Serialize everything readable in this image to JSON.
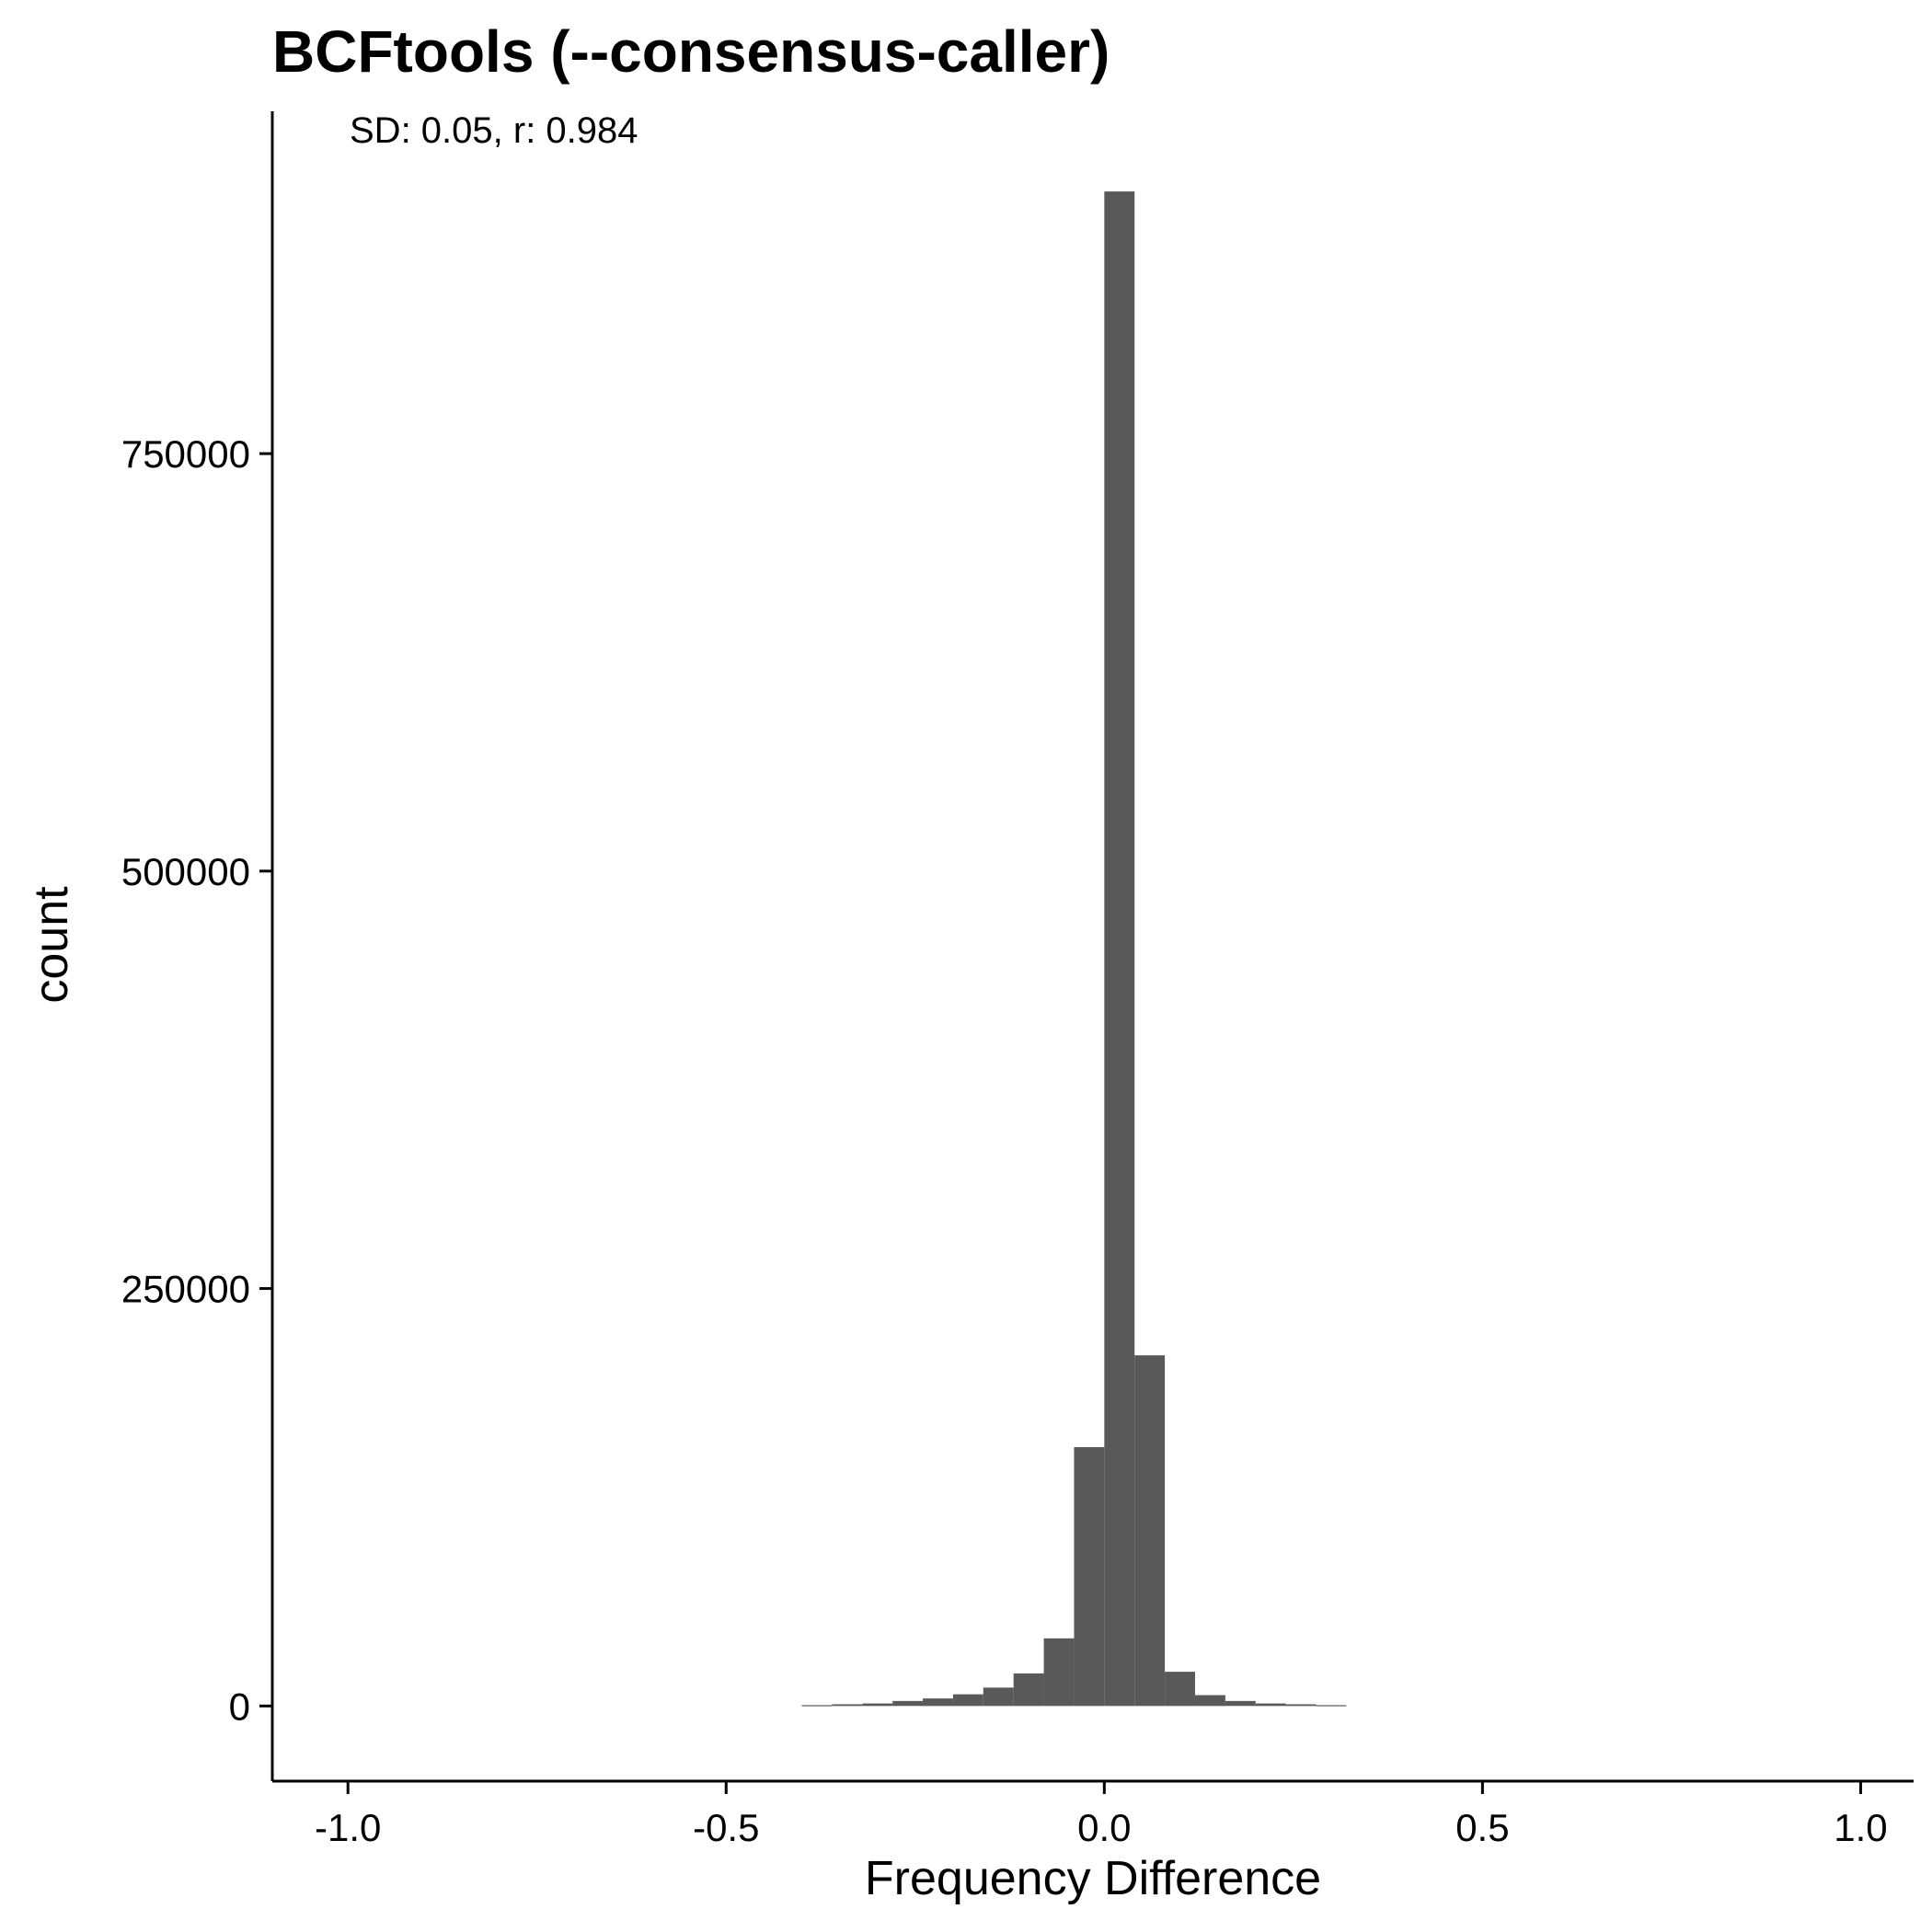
{
  "chart_data": {
    "type": "histogram",
    "title": "BCFtools (--consensus-caller)",
    "annotation": "SD: 0.05, r: 0.984",
    "xlabel": "Frequency Difference",
    "ylabel": "count",
    "xlim": [
      -1.1,
      1.07
    ],
    "ylim": [
      -45000,
      955000
    ],
    "x_ticks": [
      -1.0,
      -0.5,
      0.0,
      0.5,
      1.0
    ],
    "x_tick_labels": [
      "-1.0",
      "-0.5",
      "0.0",
      "0.5",
      "1.0"
    ],
    "y_ticks": [
      0,
      250000,
      500000,
      750000
    ],
    "y_tick_labels": [
      "0",
      "250000",
      "500000",
      "750000"
    ],
    "bar_color": "#595959",
    "bin_width": 0.04,
    "bins": [
      {
        "x0": -0.4,
        "x1": -0.36,
        "count": 500
      },
      {
        "x0": -0.36,
        "x1": -0.32,
        "count": 1000
      },
      {
        "x0": -0.32,
        "x1": -0.28,
        "count": 1500
      },
      {
        "x0": -0.28,
        "x1": -0.24,
        "count": 3000
      },
      {
        "x0": -0.24,
        "x1": -0.2,
        "count": 4500
      },
      {
        "x0": -0.2,
        "x1": -0.16,
        "count": 7000
      },
      {
        "x0": -0.16,
        "x1": -0.12,
        "count": 11000
      },
      {
        "x0": -0.12,
        "x1": -0.08,
        "count": 19500
      },
      {
        "x0": -0.08,
        "x1": -0.04,
        "count": 40500
      },
      {
        "x0": -0.04,
        "x1": 0.0,
        "count": 155000
      },
      {
        "x0": 0.0,
        "x1": 0.04,
        "count": 907000
      },
      {
        "x0": 0.04,
        "x1": 0.08,
        "count": 210000
      },
      {
        "x0": 0.08,
        "x1": 0.12,
        "count": 20500
      },
      {
        "x0": 0.12,
        "x1": 0.16,
        "count": 6500
      },
      {
        "x0": 0.16,
        "x1": 0.2,
        "count": 3000
      },
      {
        "x0": 0.2,
        "x1": 0.24,
        "count": 1500
      },
      {
        "x0": 0.24,
        "x1": 0.28,
        "count": 1000
      },
      {
        "x0": 0.28,
        "x1": 0.32,
        "count": 500
      }
    ],
    "grid": false,
    "legend": "none"
  }
}
